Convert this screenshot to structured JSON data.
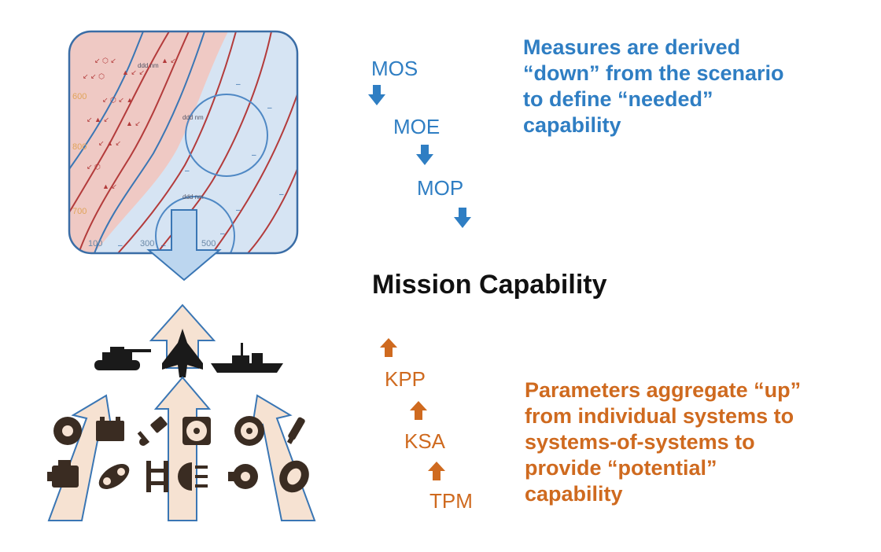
{
  "top_chain": [
    "MOS",
    "MOE",
    "MOP"
  ],
  "top_text": [
    "Measures are derived",
    "“down” from the scenario",
    "to define “needed”",
    "capability"
  ],
  "center_title": "Mission Capability",
  "bottom_chain": [
    "KPP",
    "KSA",
    "TPM"
  ],
  "bottom_text": [
    "Parameters aggregate “up”",
    "from individual systems to",
    "systems-of-systems to",
    "provide “potential”",
    "capability"
  ],
  "map": {
    "labels": [
      "600",
      "800",
      "700",
      "100",
      "300",
      "500"
    ],
    "range_labels": [
      "ddd nm",
      "ddd nm",
      "ddd nm"
    ]
  },
  "colors": {
    "blue": "#2f7ec3",
    "orange": "#cf6a1f",
    "black": "#111111"
  },
  "icons": {
    "platforms": [
      "tank-icon",
      "fighter-jet-icon",
      "warship-icon"
    ],
    "components": [
      "brake-disc-icon",
      "battery-icon",
      "piston-icon",
      "radiator-fan-icon",
      "wheel-icon",
      "spark-plug-icon",
      "engine-icon",
      "timing-belt-icon",
      "chassis-icon",
      "headlight-icon",
      "turbo-icon",
      "tire-icon"
    ]
  }
}
